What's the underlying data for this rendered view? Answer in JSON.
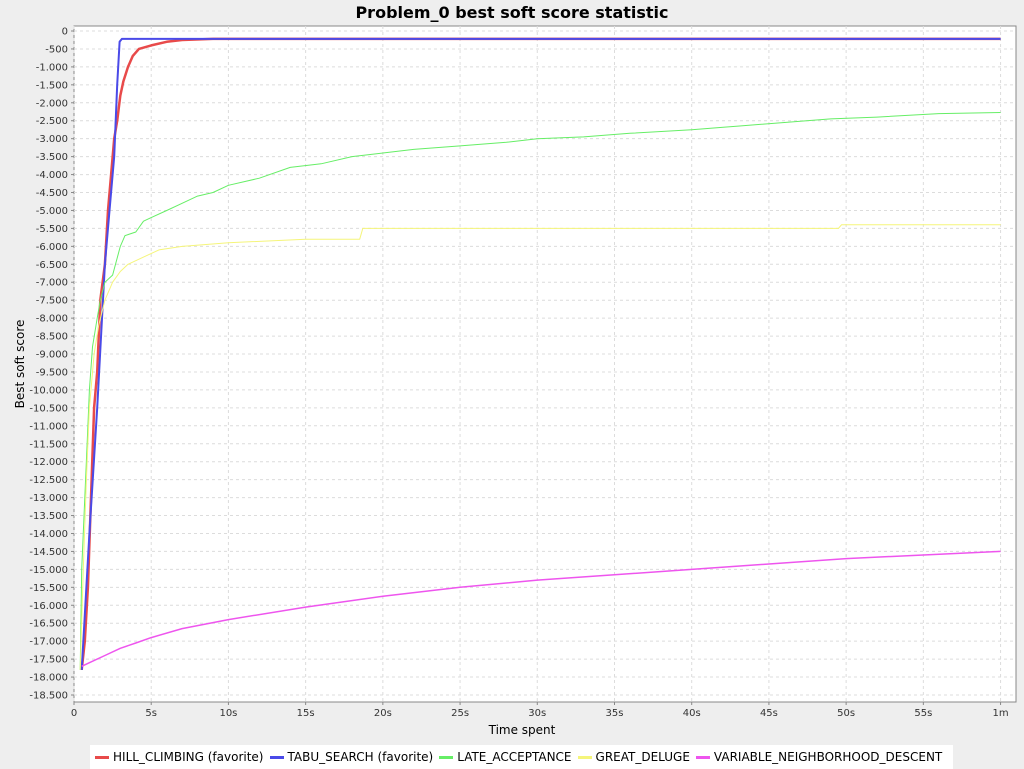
{
  "chart_data": {
    "type": "line",
    "title": "Problem_0 best soft score statistic",
    "xlabel": "Time spent",
    "ylabel": "Best soft score",
    "xlim": [
      0,
      61
    ],
    "ylim": [
      -18700,
      0
    ],
    "grid": true,
    "legend_position": "bottom",
    "x_ticks": [
      {
        "value": 0,
        "label": "0"
      },
      {
        "value": 5,
        "label": "5s"
      },
      {
        "value": 10,
        "label": "10s"
      },
      {
        "value": 15,
        "label": "15s"
      },
      {
        "value": 20,
        "label": "20s"
      },
      {
        "value": 25,
        "label": "25s"
      },
      {
        "value": 30,
        "label": "30s"
      },
      {
        "value": 35,
        "label": "35s"
      },
      {
        "value": 40,
        "label": "40s"
      },
      {
        "value": 45,
        "label": "45s"
      },
      {
        "value": 50,
        "label": "50s"
      },
      {
        "value": 55,
        "label": "55s"
      },
      {
        "value": 60,
        "label": "1m"
      }
    ],
    "y_ticks": [
      {
        "value": 0,
        "label": "0"
      },
      {
        "value": -500,
        "label": "-500"
      },
      {
        "value": -1000,
        "label": "-1.000"
      },
      {
        "value": -1500,
        "label": "-1.500"
      },
      {
        "value": -2000,
        "label": "-2.000"
      },
      {
        "value": -2500,
        "label": "-2.500"
      },
      {
        "value": -3000,
        "label": "-3.000"
      },
      {
        "value": -3500,
        "label": "-3.500"
      },
      {
        "value": -4000,
        "label": "-4.000"
      },
      {
        "value": -4500,
        "label": "-4.500"
      },
      {
        "value": -5000,
        "label": "-5.000"
      },
      {
        "value": -5500,
        "label": "-5.500"
      },
      {
        "value": -6000,
        "label": "-6.000"
      },
      {
        "value": -6500,
        "label": "-6.500"
      },
      {
        "value": -7000,
        "label": "-7.000"
      },
      {
        "value": -7500,
        "label": "-7.500"
      },
      {
        "value": -8000,
        "label": "-8.000"
      },
      {
        "value": -8500,
        "label": "-8.500"
      },
      {
        "value": -9000,
        "label": "-9.000"
      },
      {
        "value": -9500,
        "label": "-9.500"
      },
      {
        "value": -10000,
        "label": "-10.000"
      },
      {
        "value": -10500,
        "label": "-10.500"
      },
      {
        "value": -11000,
        "label": "-11.000"
      },
      {
        "value": -11500,
        "label": "-11.500"
      },
      {
        "value": -12000,
        "label": "-12.000"
      },
      {
        "value": -12500,
        "label": "-12.500"
      },
      {
        "value": -13000,
        "label": "-13.000"
      },
      {
        "value": -13500,
        "label": "-13.500"
      },
      {
        "value": -14000,
        "label": "-14.000"
      },
      {
        "value": -14500,
        "label": "-14.500"
      },
      {
        "value": -15000,
        "label": "-15.000"
      },
      {
        "value": -15500,
        "label": "-15.500"
      },
      {
        "value": -16000,
        "label": "-16.000"
      },
      {
        "value": -16500,
        "label": "-16.500"
      },
      {
        "value": -17000,
        "label": "-17.000"
      },
      {
        "value": -17500,
        "label": "-17.500"
      },
      {
        "value": -18000,
        "label": "-18.000"
      },
      {
        "value": -18500,
        "label": "-18.500"
      }
    ],
    "series": [
      {
        "name": "HILL_CLIMBING (favorite)",
        "color": "#e84a4a",
        "line_width": 2.5,
        "points": [
          [
            0.5,
            -17800
          ],
          [
            0.7,
            -17000
          ],
          [
            0.9,
            -15500
          ],
          [
            1.1,
            -13000
          ],
          [
            1.3,
            -10500
          ],
          [
            1.5,
            -9500
          ],
          [
            1.7,
            -7500
          ],
          [
            2.0,
            -6500
          ],
          [
            2.2,
            -5000
          ],
          [
            2.4,
            -4000
          ],
          [
            2.6,
            -3000
          ],
          [
            2.8,
            -2500
          ],
          [
            3.0,
            -1800
          ],
          [
            3.2,
            -1400
          ],
          [
            3.5,
            -1000
          ],
          [
            3.8,
            -700
          ],
          [
            4.2,
            -500
          ],
          [
            5.0,
            -400
          ],
          [
            6.0,
            -300
          ],
          [
            7.0,
            -250
          ],
          [
            9.0,
            -220
          ],
          [
            15,
            -220
          ],
          [
            30,
            -220
          ],
          [
            45,
            -220
          ],
          [
            60,
            -220
          ]
        ]
      },
      {
        "name": "TABU_SEARCH (favorite)",
        "color": "#4a4ae8",
        "line_width": 2,
        "points": [
          [
            0.5,
            -17800
          ],
          [
            1.0,
            -14000
          ],
          [
            1.5,
            -10500
          ],
          [
            2.0,
            -6500
          ],
          [
            2.3,
            -5000
          ],
          [
            2.6,
            -3500
          ],
          [
            2.8,
            -1500
          ],
          [
            2.95,
            -300
          ],
          [
            3.1,
            -220
          ],
          [
            3.5,
            -220
          ],
          [
            6,
            -220
          ],
          [
            30,
            -220
          ],
          [
            60,
            -220
          ]
        ]
      },
      {
        "name": "LATE_ACCEPTANCE",
        "color": "#66ee66",
        "line_width": 1,
        "points": [
          [
            0.4,
            -17800
          ],
          [
            0.5,
            -15000
          ],
          [
            0.7,
            -13000
          ],
          [
            0.9,
            -11000
          ],
          [
            1.0,
            -10000
          ],
          [
            1.2,
            -8800
          ],
          [
            1.5,
            -8000
          ],
          [
            1.7,
            -7500
          ],
          [
            2.0,
            -7000
          ],
          [
            2.5,
            -6800
          ],
          [
            3.0,
            -6000
          ],
          [
            3.3,
            -5700
          ],
          [
            4.0,
            -5600
          ],
          [
            4.5,
            -5300
          ],
          [
            5.0,
            -5200
          ],
          [
            6.0,
            -5000
          ],
          [
            7.0,
            -4800
          ],
          [
            8.0,
            -4600
          ],
          [
            9.0,
            -4500
          ],
          [
            10,
            -4300
          ],
          [
            12,
            -4100
          ],
          [
            14,
            -3800
          ],
          [
            16,
            -3700
          ],
          [
            18,
            -3500
          ],
          [
            20,
            -3400
          ],
          [
            22,
            -3300
          ],
          [
            25,
            -3200
          ],
          [
            28,
            -3100
          ],
          [
            30,
            -3000
          ],
          [
            33,
            -2950
          ],
          [
            36,
            -2850
          ],
          [
            40,
            -2750
          ],
          [
            43,
            -2650
          ],
          [
            46,
            -2550
          ],
          [
            49,
            -2450
          ],
          [
            52,
            -2400
          ],
          [
            56,
            -2300
          ],
          [
            60,
            -2270
          ]
        ]
      },
      {
        "name": "GREAT_DELUGE",
        "color": "#f5f57a",
        "line_width": 1,
        "points": [
          [
            0.4,
            -17800
          ],
          [
            0.6,
            -15000
          ],
          [
            0.8,
            -12500
          ],
          [
            1.0,
            -10500
          ],
          [
            1.3,
            -9000
          ],
          [
            1.6,
            -8200
          ],
          [
            2.0,
            -7500
          ],
          [
            2.5,
            -7000
          ],
          [
            3.0,
            -6700
          ],
          [
            3.5,
            -6500
          ],
          [
            4.5,
            -6300
          ],
          [
            5.5,
            -6100
          ],
          [
            7.0,
            -6000
          ],
          [
            10,
            -5900
          ],
          [
            15,
            -5800
          ],
          [
            18.5,
            -5800
          ],
          [
            18.7,
            -5500
          ],
          [
            25,
            -5500
          ],
          [
            35,
            -5500
          ],
          [
            49.5,
            -5500
          ],
          [
            49.7,
            -5400
          ],
          [
            60,
            -5400
          ]
        ]
      },
      {
        "name": "VARIABLE_NEIGHBORHOOD_DESCENT",
        "color": "#ee55ee",
        "line_width": 1.5,
        "points": [
          [
            0.5,
            -17700
          ],
          [
            1.0,
            -17600
          ],
          [
            2.0,
            -17400
          ],
          [
            3.0,
            -17200
          ],
          [
            4.0,
            -17050
          ],
          [
            5.0,
            -16900
          ],
          [
            7.0,
            -16650
          ],
          [
            10,
            -16400
          ],
          [
            15,
            -16050
          ],
          [
            20,
            -15750
          ],
          [
            25,
            -15500
          ],
          [
            30,
            -15300
          ],
          [
            35,
            -15150
          ],
          [
            40,
            -15000
          ],
          [
            45,
            -14850
          ],
          [
            50,
            -14700
          ],
          [
            55,
            -14600
          ],
          [
            60,
            -14500
          ]
        ]
      }
    ]
  }
}
